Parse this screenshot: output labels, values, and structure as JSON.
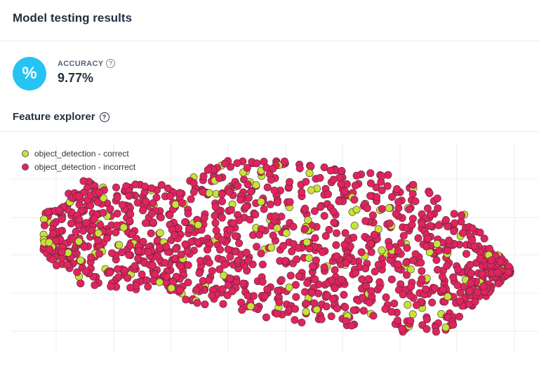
{
  "header": {
    "title": "Model testing results"
  },
  "metric": {
    "icon": "percent-icon",
    "icon_glyph": "%",
    "label": "ACCURACY",
    "value": "9.77%"
  },
  "feature_explorer": {
    "title": "Feature explorer"
  },
  "chart_data": {
    "type": "scatter",
    "grid": true,
    "legend_position": "top-left",
    "series": [
      {
        "name": "object_detection - correct",
        "color": "#c2e635"
      },
      {
        "name": "object_detection - incorrect",
        "color": "#e0245e"
      }
    ]
  }
}
